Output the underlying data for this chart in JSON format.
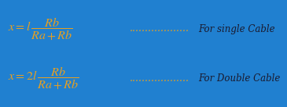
{
  "background_color": "#2080d0",
  "formula_color": "#e8a020",
  "dots_color": "#e8a020",
  "label_color": "#1a1a2e",
  "formula1": "$x = l\\,\\dfrac{Rb}{Ra + Rb}$",
  "formula2": "$x = 2l\\,\\dfrac{Rb}{Ra + Rb}$",
  "dots": "...................",
  "label1": "For single Cable",
  "label2": "For Double Cable",
  "figsize": [
    3.65,
    1.37
  ],
  "dpi": 100
}
